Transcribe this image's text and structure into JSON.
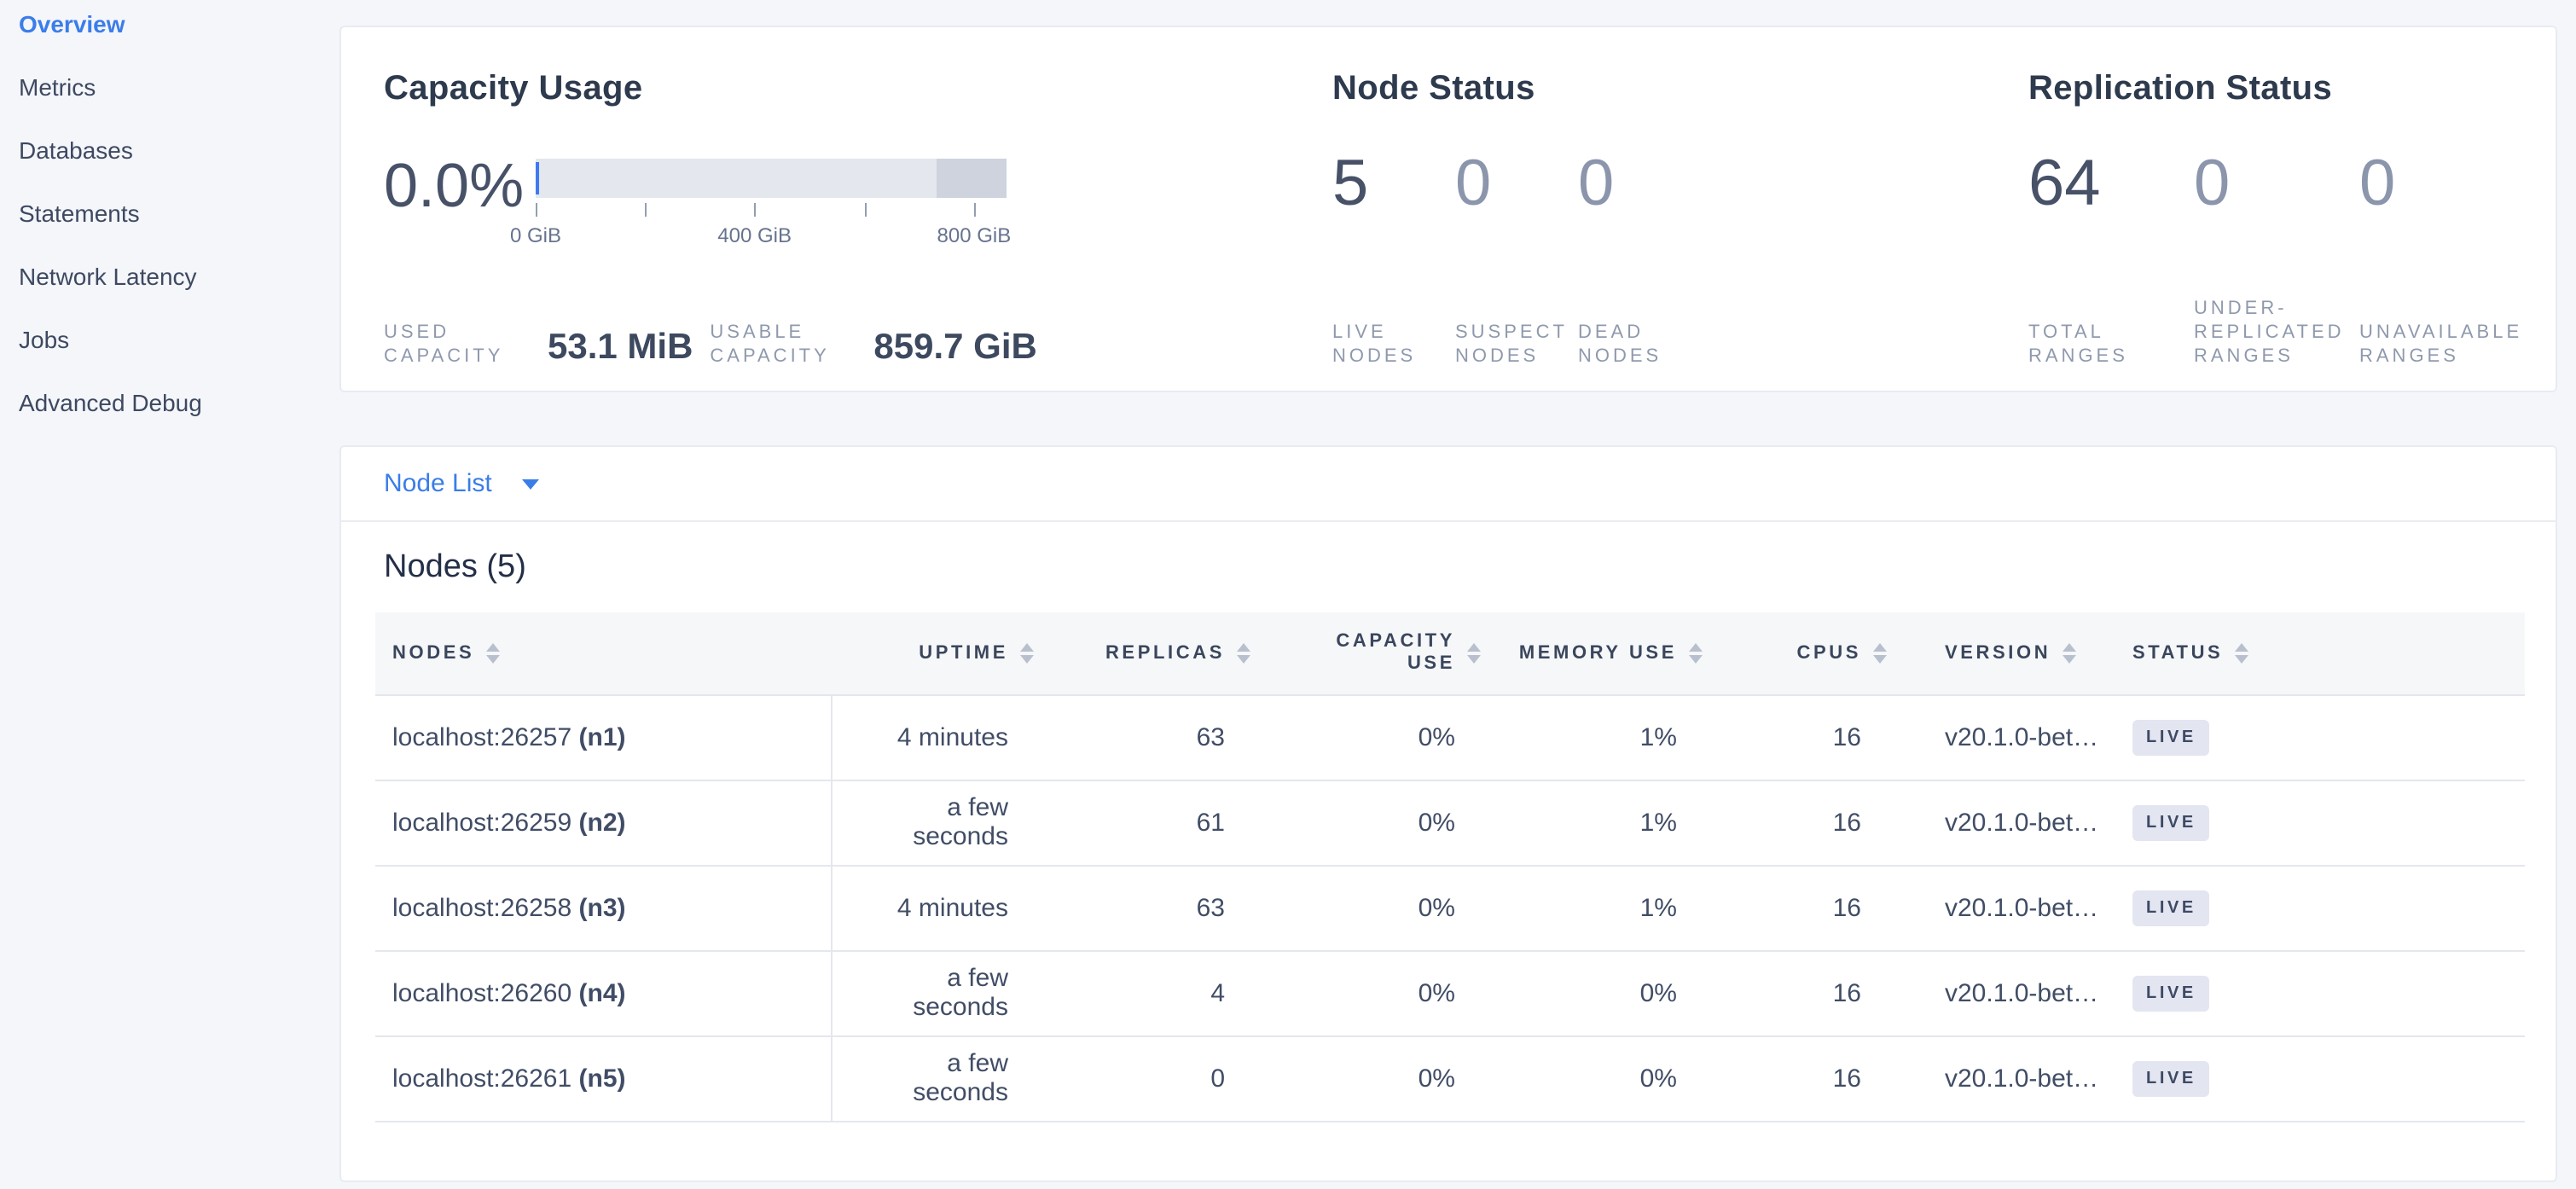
{
  "colors": {
    "accent_blue": "#3a7de8",
    "active_nav": "#3b7dea",
    "gauge_track": "#e4e7ed",
    "gauge_reserved": "#ced3de",
    "gauge_used": "#3d7bf0",
    "live_badge_bg": "#e3e6f1",
    "live_badge_text": "#3e4a64"
  },
  "sidebar": {
    "items": [
      {
        "label": "Overview",
        "active": true
      },
      {
        "label": "Metrics",
        "active": false
      },
      {
        "label": "Databases",
        "active": false
      },
      {
        "label": "Statements",
        "active": false
      },
      {
        "label": "Network Latency",
        "active": false
      },
      {
        "label": "Jobs",
        "active": false
      },
      {
        "label": "Advanced Debug",
        "active": false
      }
    ]
  },
  "capacity": {
    "title": "Capacity Usage",
    "percent": "0.0%",
    "stats": [
      {
        "label": "USED CAPACITY",
        "value": "53.1 MiB"
      },
      {
        "label": "USABLE CAPACITY",
        "value": "859.7 GiB"
      }
    ],
    "gauge": {
      "axis_max_gib": 860,
      "used_gib": 0.052,
      "usable_gib": 859.7,
      "reserved_segment_start_pct": 85,
      "ticks": [
        {
          "pos_pct": 0,
          "label": "0 GiB"
        },
        {
          "pos_pct": 23.3,
          "label": ""
        },
        {
          "pos_pct": 46.5,
          "label": "400 GiB"
        },
        {
          "pos_pct": 69.8,
          "label": ""
        },
        {
          "pos_pct": 93.1,
          "label": "800 GiB"
        }
      ]
    }
  },
  "node_status": {
    "title": "Node Status",
    "stats": [
      {
        "value": "5",
        "label": "LIVE NODES",
        "muted": false
      },
      {
        "value": "0",
        "label": "SUSPECT NODES",
        "muted": true
      },
      {
        "value": "0",
        "label": "DEAD NODES",
        "muted": true
      }
    ]
  },
  "replication": {
    "title": "Replication Status",
    "stats": [
      {
        "value": "64",
        "label": "TOTAL RANGES",
        "muted": false
      },
      {
        "value": "0",
        "label": "UNDER-REPLICATED RANGES",
        "muted": true
      },
      {
        "value": "0",
        "label": "UNAVAILABLE RANGES",
        "muted": true
      }
    ]
  },
  "node_list": {
    "selector_label": "Node List",
    "heading": "Nodes (5)",
    "columns": [
      {
        "key": "nodes",
        "label": "NODES",
        "align": "left",
        "wrap": false
      },
      {
        "key": "uptime",
        "label": "UPTIME",
        "align": "right",
        "wrap": false
      },
      {
        "key": "replicas",
        "label": "REPLICAS",
        "align": "right",
        "wrap": false
      },
      {
        "key": "capacity",
        "label": "CAPACITY USE",
        "align": "right",
        "wrap": true
      },
      {
        "key": "memory",
        "label": "MEMORY USE",
        "align": "right",
        "wrap": false
      },
      {
        "key": "cpus",
        "label": "CPUS",
        "align": "right",
        "wrap": false
      },
      {
        "key": "version",
        "label": "VERSION",
        "align": "left",
        "wrap": false
      },
      {
        "key": "status",
        "label": "STATUS",
        "align": "left",
        "wrap": false
      }
    ],
    "rows": [
      {
        "address": "localhost:26257",
        "id": "(n1)",
        "uptime": "4 minutes",
        "replicas": "63",
        "capacity": "0%",
        "memory": "1%",
        "cpus": "16",
        "version": "v20.1.0-bet…",
        "status": "LIVE"
      },
      {
        "address": "localhost:26259",
        "id": "(n2)",
        "uptime": "a few seconds",
        "replicas": "61",
        "capacity": "0%",
        "memory": "1%",
        "cpus": "16",
        "version": "v20.1.0-bet…",
        "status": "LIVE"
      },
      {
        "address": "localhost:26258",
        "id": "(n3)",
        "uptime": "4 minutes",
        "replicas": "63",
        "capacity": "0%",
        "memory": "1%",
        "cpus": "16",
        "version": "v20.1.0-bet…",
        "status": "LIVE"
      },
      {
        "address": "localhost:26260",
        "id": "(n4)",
        "uptime": "a few seconds",
        "replicas": "4",
        "capacity": "0%",
        "memory": "0%",
        "cpus": "16",
        "version": "v20.1.0-bet…",
        "status": "LIVE"
      },
      {
        "address": "localhost:26261",
        "id": "(n5)",
        "uptime": "a few seconds",
        "replicas": "0",
        "capacity": "0%",
        "memory": "0%",
        "cpus": "16",
        "version": "v20.1.0-bet…",
        "status": "LIVE"
      }
    ]
  }
}
